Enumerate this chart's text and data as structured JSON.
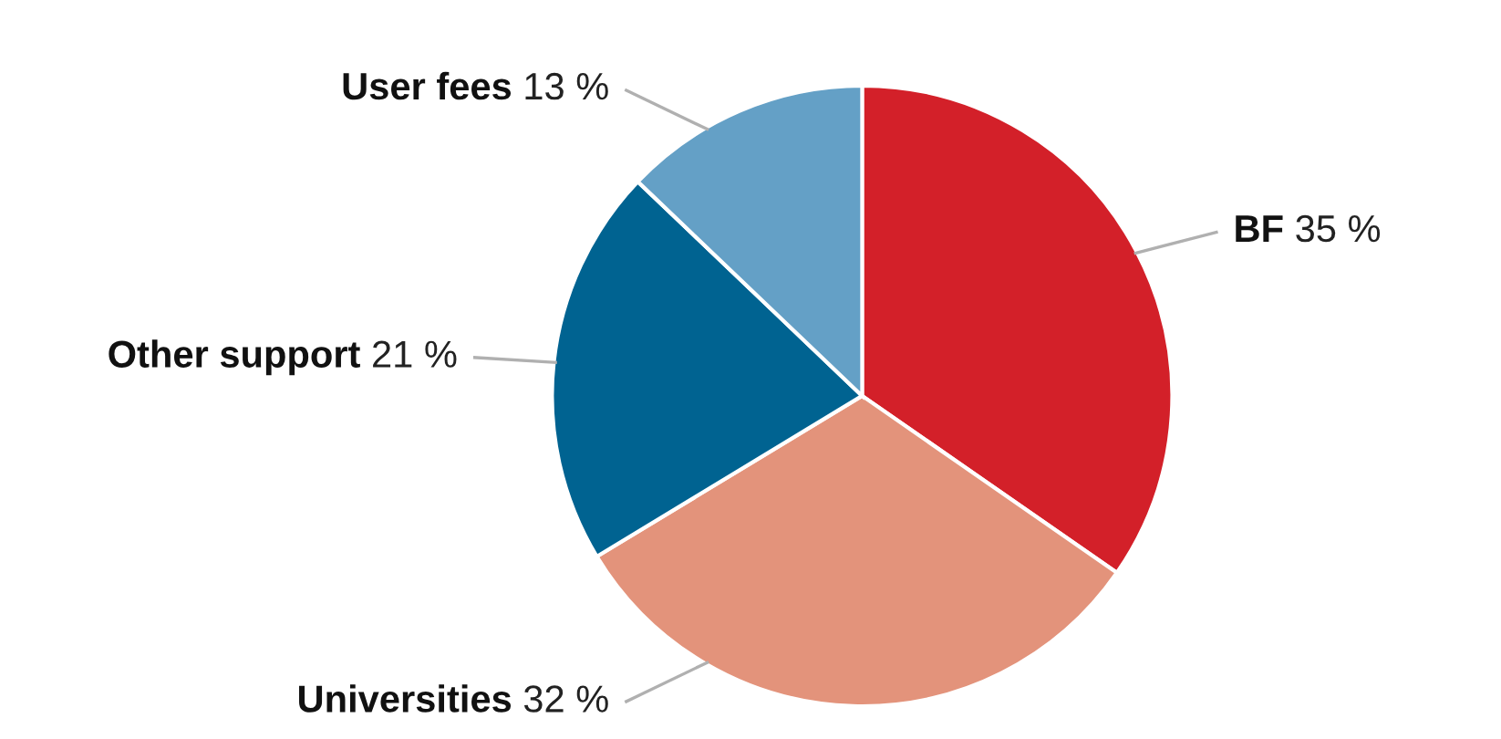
{
  "chart_data": {
    "type": "pie",
    "categories": [
      "BF",
      "Universities",
      "Other support",
      "User fees"
    ],
    "values": [
      35,
      32,
      21,
      13
    ],
    "value_labels": [
      "35 %",
      "32 %",
      "21 %",
      "13 %"
    ],
    "colors": [
      "#d32029",
      "#e3937b",
      "#006391",
      "#64a0c6"
    ],
    "legend": false
  }
}
